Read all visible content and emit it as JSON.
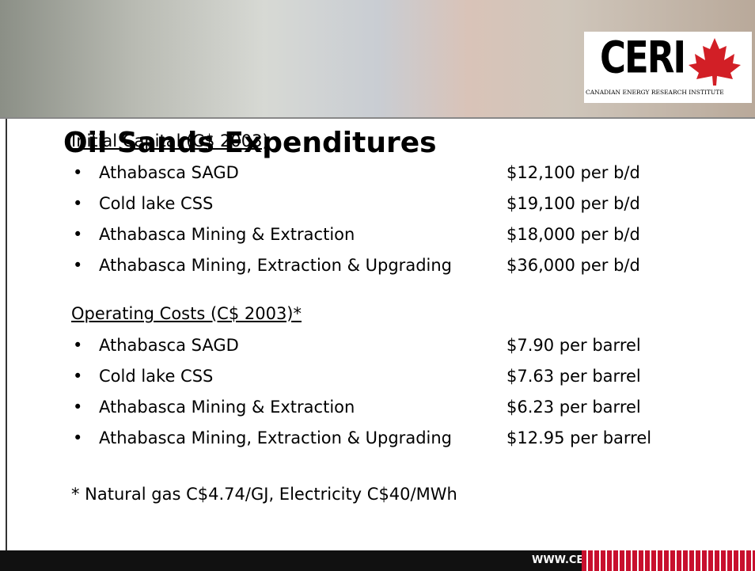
{
  "header": {
    "title": "Oil Sands Expenditures",
    "logo": "CERI",
    "logo_subtitle": "CANADIAN ENERGY RESEARCH INSTITUTE"
  },
  "sections": [
    {
      "heading": "Initial Capital (C$ 2003)",
      "items": [
        {
          "name": "Athabasca SAGD",
          "value": "$12,100 per b/d"
        },
        {
          "name": "Cold lake CSS",
          "value": "$19,100 per b/d"
        },
        {
          "name": "Athabasca Mining & Extraction",
          "value": "$18,000 per b/d"
        },
        {
          "name": "Athabasca Mining, Extraction & Upgrading",
          "value": "$36,000 per b/d"
        }
      ]
    },
    {
      "heading": "Operating Costs (C$ 2003)*",
      "items": [
        {
          "name": "Athabasca SAGD",
          "value": "$7.90 per barrel"
        },
        {
          "name": "Cold lake CSS",
          "value": "$7.63 per barrel"
        },
        {
          "name": "Athabasca Mining & Extraction",
          "value": "$6.23 per barrel"
        },
        {
          "name": "Athabasca Mining, Extraction & Upgrading",
          "value": "$12.95 per barrel"
        }
      ]
    }
  ],
  "footnote": "* Natural gas C$4.74/GJ, Electricity C$40/MWh",
  "footer": {
    "url": "WWW.CERI.CA"
  }
}
